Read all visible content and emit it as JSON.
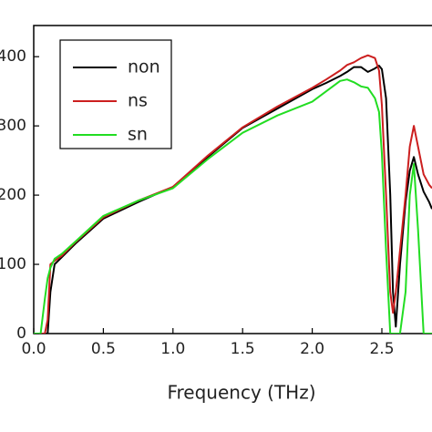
{
  "chart_data": {
    "type": "line",
    "x_label": "Frequency (THz)",
    "x": [
      0,
      0.05,
      0.08,
      0.1,
      0.12,
      0.15,
      0.2,
      0.3,
      0.5,
      0.75,
      1.0,
      1.25,
      1.5,
      1.75,
      2.0,
      2.1,
      2.2,
      2.25,
      2.3,
      2.35,
      2.4,
      2.45,
      2.48,
      2.5,
      2.53,
      2.56,
      2.58,
      2.6,
      2.63,
      2.67,
      2.7,
      2.73,
      2.76,
      2.8,
      2.84,
      2.86
    ],
    "series": [
      {
        "name": "non",
        "color": "#000000",
        "values": [
          0,
          0,
          0,
          0,
          60,
          100,
          110,
          130,
          166,
          190,
          212,
          255,
          297,
          325,
          353,
          362,
          372,
          378,
          385,
          385,
          378,
          383,
          387,
          382,
          340,
          200,
          60,
          10,
          100,
          190,
          235,
          255,
          230,
          205,
          190,
          180
        ]
      },
      {
        "name": "ns",
        "color": "#cc1f1f",
        "values": [
          0,
          0,
          0,
          20,
          100,
          105,
          112,
          132,
          168,
          192,
          212,
          257,
          298,
          328,
          355,
          367,
          380,
          388,
          392,
          398,
          402,
          398,
          380,
          330,
          200,
          60,
          30,
          60,
          120,
          200,
          270,
          300,
          270,
          230,
          215,
          210
        ]
      },
      {
        "name": "sn",
        "color": "#22dd22",
        "values": [
          0,
          0,
          50,
          80,
          95,
          108,
          115,
          133,
          170,
          192,
          210,
          252,
          290,
          315,
          335,
          350,
          365,
          367,
          363,
          357,
          355,
          340,
          320,
          260,
          120,
          0,
          0,
          0,
          0,
          60,
          200,
          245,
          150,
          0,
          0,
          0
        ]
      }
    ],
    "xlim": [
      0,
      2.86
    ],
    "ylim": [
      0,
      445
    ],
    "xticks": [
      {
        "value": 0,
        "label": "0.0"
      },
      0.5,
      {
        "value": 1,
        "label": "1.0"
      },
      1.5,
      {
        "value": 2,
        "label": "2.0"
      },
      2.5
    ],
    "yticks": [
      0,
      100,
      200,
      300,
      400
    ]
  }
}
